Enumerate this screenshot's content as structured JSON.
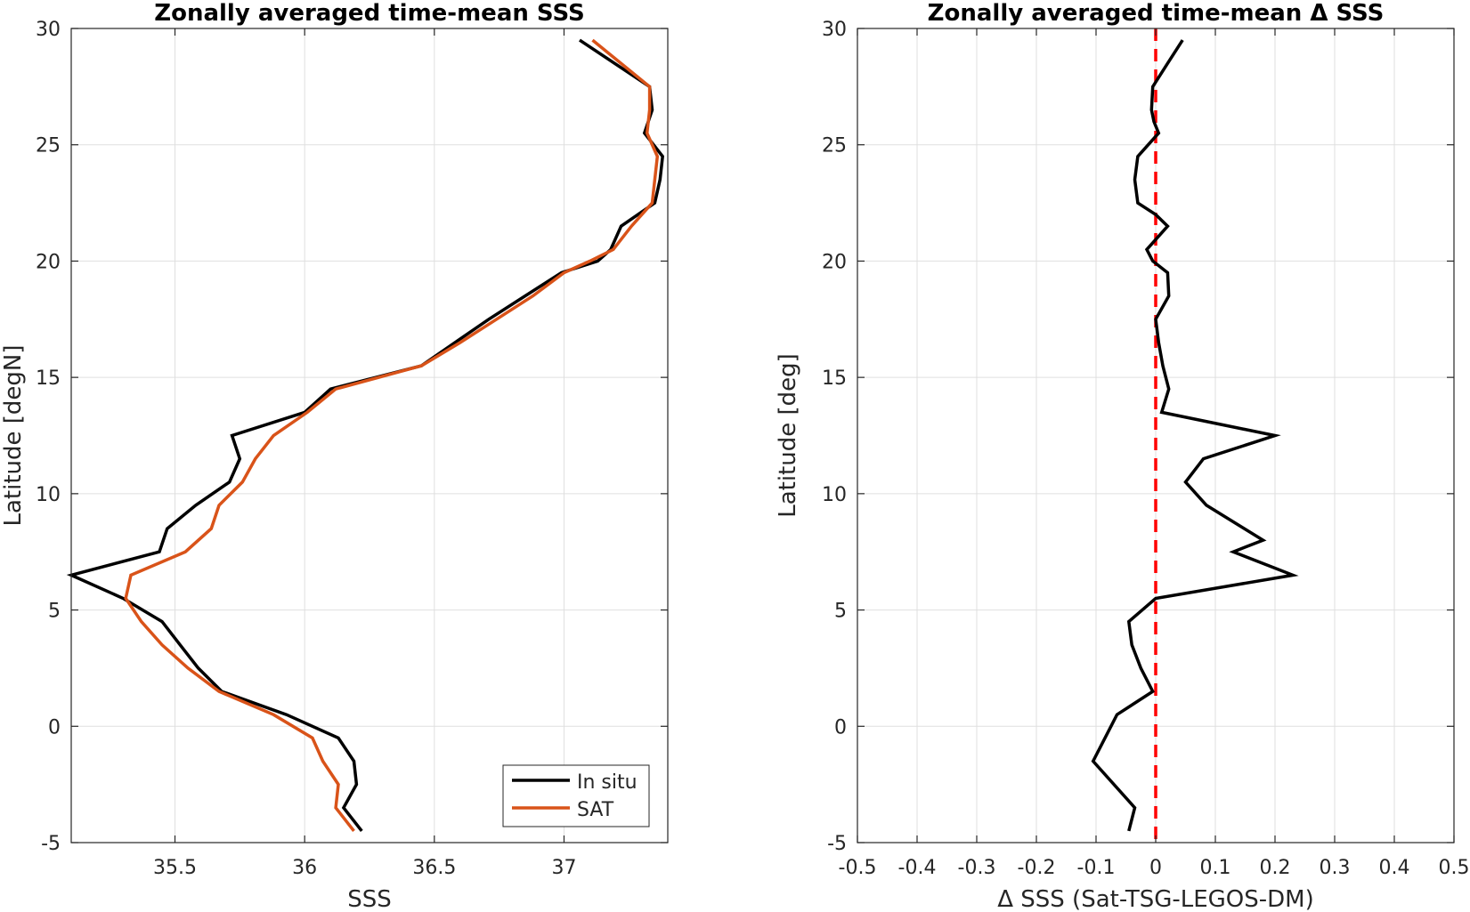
{
  "chart_data": [
    {
      "type": "line",
      "title": "Zonally averaged time-mean SSS",
      "xlabel": "SSS",
      "ylabel": "Latitude [degN]",
      "xlim": [
        35.1,
        37.4
      ],
      "ylim": [
        -5,
        30
      ],
      "xticks": [
        35.5,
        36,
        36.5,
        37
      ],
      "xtick_labels": [
        "35.5",
        "36",
        "36.5",
        "37"
      ],
      "yticks": [
        -5,
        0,
        5,
        10,
        15,
        20,
        25,
        30
      ],
      "ytick_labels": [
        "-5",
        "0",
        "5",
        "10",
        "15",
        "20",
        "25",
        "30"
      ],
      "grid": true,
      "legend": {
        "position": "bottom-right"
      },
      "series": [
        {
          "name": "In situ",
          "color": "#000000",
          "points": [
            [
              37.06,
              29.5
            ],
            [
              37.33,
              27.5
            ],
            [
              37.34,
              26.5
            ],
            [
              37.31,
              25.5
            ],
            [
              37.38,
              24.5
            ],
            [
              37.37,
              23.5
            ],
            [
              37.35,
              22.5
            ],
            [
              37.22,
              21.5
            ],
            [
              37.18,
              20.5
            ],
            [
              37.13,
              20.0
            ],
            [
              36.99,
              19.5
            ],
            [
              36.85,
              18.5
            ],
            [
              36.71,
              17.5
            ],
            [
              36.58,
              16.5
            ],
            [
              36.45,
              15.5
            ],
            [
              36.1,
              14.5
            ],
            [
              36.0,
              13.5
            ],
            [
              35.72,
              12.5
            ],
            [
              35.75,
              11.5
            ],
            [
              35.71,
              10.5
            ],
            [
              35.58,
              9.5
            ],
            [
              35.47,
              8.5
            ],
            [
              35.44,
              7.5
            ],
            [
              35.1,
              6.5
            ],
            [
              35.3,
              5.5
            ],
            [
              35.45,
              4.5
            ],
            [
              35.52,
              3.5
            ],
            [
              35.59,
              2.5
            ],
            [
              35.68,
              1.5
            ],
            [
              35.93,
              0.5
            ],
            [
              36.13,
              -0.5
            ],
            [
              36.19,
              -1.5
            ],
            [
              36.2,
              -2.5
            ],
            [
              36.15,
              -3.5
            ],
            [
              36.22,
              -4.5
            ]
          ]
        },
        {
          "name": "SAT",
          "color": "#D95319",
          "points": [
            [
              37.11,
              29.5
            ],
            [
              37.33,
              27.5
            ],
            [
              37.33,
              26.5
            ],
            [
              37.32,
              25.5
            ],
            [
              37.36,
              24.5
            ],
            [
              37.35,
              23.5
            ],
            [
              37.34,
              22.5
            ],
            [
              37.26,
              21.5
            ],
            [
              37.19,
              20.5
            ],
            [
              37.1,
              20.0
            ],
            [
              37.0,
              19.5
            ],
            [
              36.88,
              18.5
            ],
            [
              36.74,
              17.5
            ],
            [
              36.6,
              16.5
            ],
            [
              36.45,
              15.5
            ],
            [
              36.12,
              14.5
            ],
            [
              36.01,
              13.5
            ],
            [
              35.88,
              12.5
            ],
            [
              35.81,
              11.5
            ],
            [
              35.76,
              10.5
            ],
            [
              35.67,
              9.5
            ],
            [
              35.64,
              8.5
            ],
            [
              35.54,
              7.5
            ],
            [
              35.33,
              6.5
            ],
            [
              35.31,
              5.5
            ],
            [
              35.37,
              4.5
            ],
            [
              35.45,
              3.5
            ],
            [
              35.55,
              2.5
            ],
            [
              35.67,
              1.5
            ],
            [
              35.88,
              0.5
            ],
            [
              36.03,
              -0.5
            ],
            [
              36.07,
              -1.5
            ],
            [
              36.13,
              -2.5
            ],
            [
              36.12,
              -3.5
            ],
            [
              36.19,
              -4.5
            ]
          ]
        }
      ]
    },
    {
      "type": "line",
      "title": "Zonally averaged time-mean Δ SSS",
      "xlabel": "Δ SSS (Sat-TSG-LEGOS-DM)",
      "ylabel": "Latitude [deg]",
      "xlim": [
        -0.5,
        0.5
      ],
      "ylim": [
        -5,
        30
      ],
      "xticks": [
        -0.5,
        -0.4,
        -0.3,
        -0.2,
        -0.1,
        0,
        0.1,
        0.2,
        0.3,
        0.4,
        0.5
      ],
      "xtick_labels": [
        "-0.5",
        "-0.4",
        "-0.3",
        "-0.2",
        "-0.1",
        "0",
        "0.1",
        "0.2",
        "0.3",
        "0.4",
        "0.5"
      ],
      "yticks": [
        -5,
        0,
        5,
        10,
        15,
        20,
        25,
        30
      ],
      "ytick_labels": [
        "-5",
        "0",
        "5",
        "10",
        "15",
        "20",
        "25",
        "30"
      ],
      "grid": true,
      "reference_line": {
        "x": 0,
        "color": "#FF0000",
        "style": "dashed"
      },
      "series": [
        {
          "color": "#000000",
          "points": [
            [
              0.045,
              29.5
            ],
            [
              0.02,
              28.5
            ],
            [
              -0.005,
              27.5
            ],
            [
              -0.007,
              26.5
            ],
            [
              -0.003,
              26.0
            ],
            [
              0.005,
              25.5
            ],
            [
              -0.03,
              24.5
            ],
            [
              -0.035,
              23.5
            ],
            [
              -0.03,
              22.5
            ],
            [
              0.0,
              22.0
            ],
            [
              0.02,
              21.5
            ],
            [
              -0.015,
              20.5
            ],
            [
              -0.005,
              20.0
            ],
            [
              0.02,
              19.5
            ],
            [
              0.022,
              18.5
            ],
            [
              0.0,
              17.5
            ],
            [
              0.005,
              16.5
            ],
            [
              0.012,
              15.5
            ],
            [
              0.022,
              14.5
            ],
            [
              0.01,
              13.5
            ],
            [
              0.2,
              12.5
            ],
            [
              0.08,
              11.5
            ],
            [
              0.05,
              10.5
            ],
            [
              0.085,
              9.5
            ],
            [
              0.18,
              8.0
            ],
            [
              0.13,
              7.5
            ],
            [
              0.23,
              6.5
            ],
            [
              0.0,
              5.5
            ],
            [
              -0.045,
              4.5
            ],
            [
              -0.04,
              3.5
            ],
            [
              -0.025,
              2.5
            ],
            [
              -0.005,
              1.5
            ],
            [
              -0.065,
              0.5
            ],
            [
              -0.075,
              0.0
            ],
            [
              -0.105,
              -1.5
            ],
            [
              -0.035,
              -3.5
            ],
            [
              -0.045,
              -4.5
            ]
          ]
        }
      ]
    }
  ]
}
